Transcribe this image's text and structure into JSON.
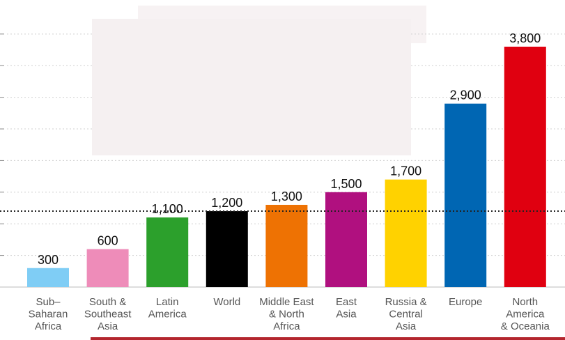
{
  "chart_data": {
    "type": "bar",
    "title": "",
    "xlabel": "",
    "ylabel": "",
    "ylim": [
      0,
      4000
    ],
    "grid": true,
    "reference_line": {
      "value": 1200,
      "style": "dotted"
    },
    "categories": [
      [
        "Sub–",
        "Saharan",
        "Africa"
      ],
      [
        "South &",
        "Southeast",
        "Asia"
      ],
      [
        "Latin",
        "America"
      ],
      [
        "World"
      ],
      [
        "Middle East",
        "& North",
        "Africa"
      ],
      [
        "East",
        "Asia"
      ],
      [
        "Russia &",
        "Central",
        "Asia"
      ],
      [
        "Europe"
      ],
      [
        "North",
        "America",
        "& Oceania"
      ]
    ],
    "values": [
      300,
      600,
      1100,
      1200,
      1300,
      1500,
      1700,
      2900,
      3800
    ],
    "value_labels": [
      "300",
      "600",
      "1,100",
      "1,200",
      "1,300",
      "1,500",
      "1,700",
      "2,900",
      "3,800"
    ],
    "colors": [
      "#7fcdf5",
      "#ee8cb9",
      "#2ca02c",
      "#000000",
      "#ee7203",
      "#b0107f",
      "#ffd200",
      "#0066b3",
      "#e00010"
    ]
  }
}
